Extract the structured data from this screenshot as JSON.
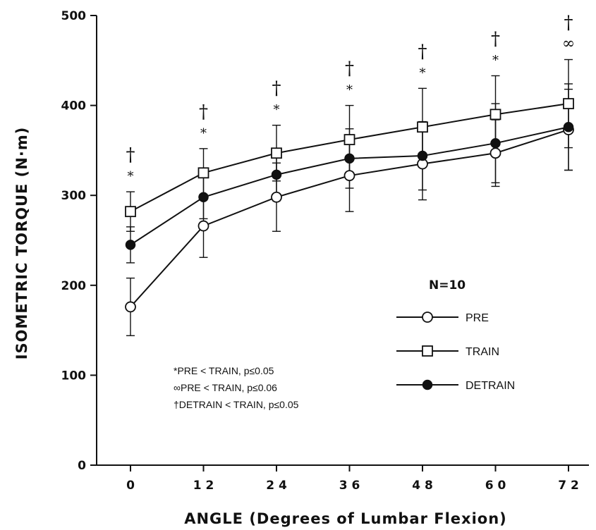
{
  "chart_data": {
    "type": "line",
    "title": "",
    "xlabel": "ANGLE (Degrees of Lumbar Flexion)",
    "ylabel": "ISOMETRIC TORQUE (N·m)",
    "x": [
      0,
      12,
      24,
      36,
      48,
      60,
      72
    ],
    "x_tick_labels": [
      "0",
      "1 2",
      "2 4",
      "3 6",
      "4 8",
      "6 0",
      "7 2"
    ],
    "ylim": [
      0,
      500
    ],
    "y_ticks": [
      0,
      100,
      200,
      300,
      400,
      500
    ],
    "y_tick_labels": [
      "0",
      "100",
      "200",
      "300",
      "400",
      "500"
    ],
    "grid": false,
    "legend": {
      "title": "N=10",
      "placement": "right-center"
    },
    "series": [
      {
        "name": "PRE",
        "marker": "open-circle",
        "values": [
          176,
          266,
          298,
          322,
          335,
          347,
          373
        ],
        "errors": [
          32,
          35,
          38,
          40,
          40,
          37,
          45
        ]
      },
      {
        "name": "TRAIN",
        "marker": "open-square",
        "values": [
          282,
          325,
          347,
          362,
          376,
          390,
          402
        ],
        "errors": [
          22,
          27,
          31,
          38,
          43,
          43,
          49
        ]
      },
      {
        "name": "DETRAIN",
        "marker": "filled-circle",
        "values": [
          245,
          298,
          323,
          341,
          344,
          358,
          376
        ],
        "errors": [
          20,
          24,
          29,
          33,
          38,
          44,
          48
        ]
      }
    ],
    "significance_marks": [
      {
        "x": 0,
        "marks": [
          "†",
          "*"
        ]
      },
      {
        "x": 12,
        "marks": [
          "†",
          "*"
        ]
      },
      {
        "x": 24,
        "marks": [
          "†",
          "*"
        ]
      },
      {
        "x": 36,
        "marks": [
          "†",
          "*"
        ]
      },
      {
        "x": 48,
        "marks": [
          "†",
          "*"
        ]
      },
      {
        "x": 60,
        "marks": [
          "†",
          "*"
        ]
      },
      {
        "x": 72,
        "marks": [
          "†",
          "∞"
        ]
      }
    ],
    "annotations": [
      "*PRE < TRAIN, p≤0.05",
      "∞PRE < TRAIN, p≤0.06",
      "†DETRAIN < TRAIN, p≤0.05"
    ]
  }
}
